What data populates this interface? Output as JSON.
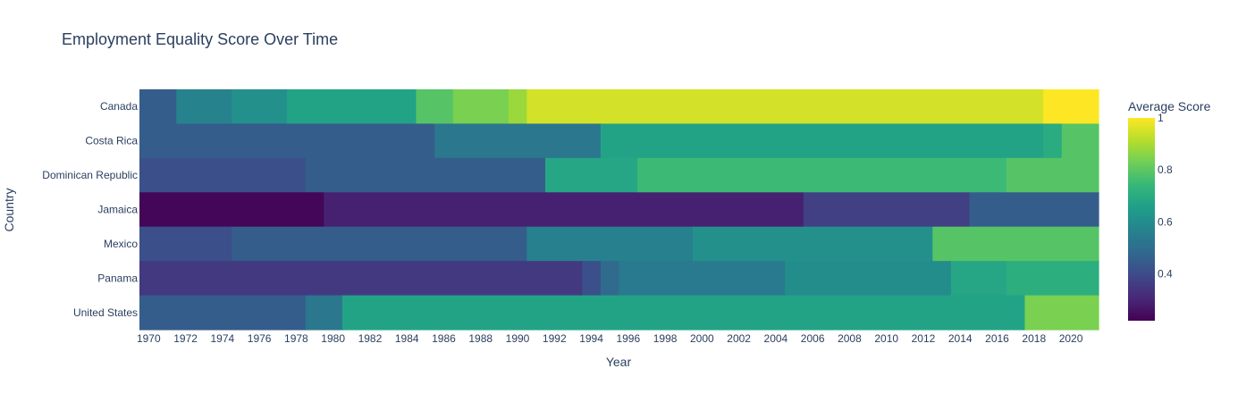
{
  "chart_data": {
    "type": "heatmap",
    "title": "Employment Equality Score Over Time",
    "xlabel": "Year",
    "ylabel": "Country",
    "colorbar_title": "Average Score",
    "colorscale": "Viridis",
    "zmin": 0.22,
    "zmax": 1.0,
    "colorbar_ticks": [
      0.4,
      0.6,
      0.8,
      1
    ],
    "colorbar_tick_labels": [
      "0.4",
      "0.6",
      "0.8",
      "1"
    ],
    "x_range": [
      1970,
      2022
    ],
    "x_ticks": [
      1970,
      1972,
      1974,
      1976,
      1978,
      1980,
      1982,
      1984,
      1986,
      1988,
      1990,
      1992,
      1994,
      1996,
      1998,
      2000,
      2002,
      2004,
      2006,
      2008,
      2010,
      2012,
      2014,
      2016,
      2018,
      2020
    ],
    "x_tick_labels": [
      "1970",
      "1972",
      "1974",
      "1976",
      "1978",
      "1980",
      "1982",
      "1984",
      "1986",
      "1988",
      "1990",
      "1992",
      "1994",
      "1996",
      "1998",
      "2000",
      "2002",
      "2004",
      "2006",
      "2008",
      "2010",
      "2012",
      "2014",
      "2016",
      "2018",
      "2020"
    ],
    "countries": [
      "Canada",
      "Costa Rica",
      "Dominican Republic",
      "Jamaica",
      "Mexico",
      "Panama",
      "United States"
    ],
    "rows": [
      {
        "country": "Canada",
        "segments": [
          {
            "start": 1970,
            "end": 1972,
            "value": 0.45
          },
          {
            "start": 1972,
            "end": 1975,
            "value": 0.57
          },
          {
            "start": 1975,
            "end": 1978,
            "value": 0.61
          },
          {
            "start": 1978,
            "end": 1985,
            "value": 0.67
          },
          {
            "start": 1985,
            "end": 1987,
            "value": 0.79
          },
          {
            "start": 1987,
            "end": 1990,
            "value": 0.84
          },
          {
            "start": 1990,
            "end": 1991,
            "value": 0.88
          },
          {
            "start": 1991,
            "end": 2019,
            "value": 0.95
          },
          {
            "start": 2019,
            "end": 2022,
            "value": 1.0
          }
        ]
      },
      {
        "country": "Costa Rica",
        "segments": [
          {
            "start": 1970,
            "end": 1986,
            "value": 0.45
          },
          {
            "start": 1986,
            "end": 1995,
            "value": 0.53
          },
          {
            "start": 1995,
            "end": 2019,
            "value": 0.67
          },
          {
            "start": 2019,
            "end": 2020,
            "value": 0.7
          },
          {
            "start": 2020,
            "end": 2022,
            "value": 0.79
          }
        ]
      },
      {
        "country": "Dominican Republic",
        "segments": [
          {
            "start": 1970,
            "end": 1979,
            "value": 0.41
          },
          {
            "start": 1979,
            "end": 1992,
            "value": 0.45
          },
          {
            "start": 1992,
            "end": 1997,
            "value": 0.68
          },
          {
            "start": 1997,
            "end": 2017,
            "value": 0.75
          },
          {
            "start": 2017,
            "end": 2022,
            "value": 0.79
          }
        ]
      },
      {
        "country": "Jamaica",
        "segments": [
          {
            "start": 1970,
            "end": 1980,
            "value": 0.23
          },
          {
            "start": 1980,
            "end": 2006,
            "value": 0.29
          },
          {
            "start": 2006,
            "end": 2015,
            "value": 0.37
          },
          {
            "start": 2015,
            "end": 2022,
            "value": 0.45
          }
        ]
      },
      {
        "country": "Mexico",
        "segments": [
          {
            "start": 1970,
            "end": 1975,
            "value": 0.41
          },
          {
            "start": 1975,
            "end": 1991,
            "value": 0.45
          },
          {
            "start": 1991,
            "end": 2000,
            "value": 0.56
          },
          {
            "start": 2000,
            "end": 2013,
            "value": 0.61
          },
          {
            "start": 2013,
            "end": 2022,
            "value": 0.79
          }
        ]
      },
      {
        "country": "Panama",
        "segments": [
          {
            "start": 1970,
            "end": 1994,
            "value": 0.35
          },
          {
            "start": 1994,
            "end": 1995,
            "value": 0.41
          },
          {
            "start": 1995,
            "end": 1996,
            "value": 0.49
          },
          {
            "start": 1996,
            "end": 2005,
            "value": 0.54
          },
          {
            "start": 2005,
            "end": 2014,
            "value": 0.6
          },
          {
            "start": 2014,
            "end": 2017,
            "value": 0.68
          },
          {
            "start": 2017,
            "end": 2022,
            "value": 0.71
          }
        ]
      },
      {
        "country": "United States",
        "segments": [
          {
            "start": 1970,
            "end": 1979,
            "value": 0.45
          },
          {
            "start": 1979,
            "end": 1981,
            "value": 0.53
          },
          {
            "start": 1981,
            "end": 2018,
            "value": 0.67
          },
          {
            "start": 2018,
            "end": 2022,
            "value": 0.84
          }
        ]
      }
    ]
  }
}
